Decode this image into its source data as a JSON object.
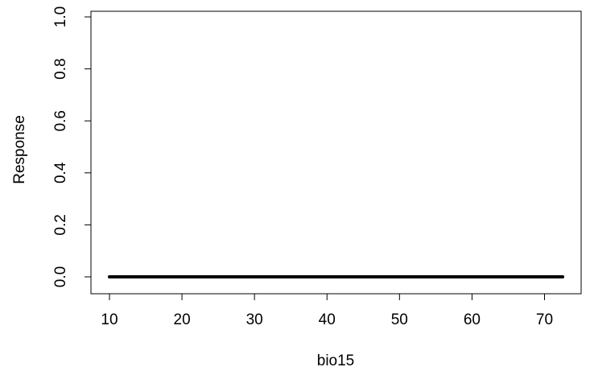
{
  "chart_data": {
    "type": "line",
    "xlabel": "bio15",
    "ylabel": "Response",
    "xlim": [
      10,
      72.5
    ],
    "ylim": [
      0,
      1
    ],
    "x_ticks": [
      10,
      20,
      30,
      40,
      50,
      60,
      70
    ],
    "y_ticks": [
      0,
      0.2,
      0.4,
      0.6,
      0.8,
      1
    ],
    "x_tick_labels": [
      "10",
      "20",
      "30",
      "40",
      "50",
      "60",
      "70"
    ],
    "y_tick_labels": [
      "0.0",
      "0.2",
      "0.4",
      "0.6",
      "0.8",
      "1.0"
    ],
    "grid": false,
    "series": [
      {
        "x": [
          10,
          20,
          30,
          40,
          50,
          60,
          70,
          72.5
        ],
        "y": [
          0,
          0,
          0,
          0,
          0,
          0,
          0,
          0
        ],
        "color": "#000000"
      }
    ]
  }
}
